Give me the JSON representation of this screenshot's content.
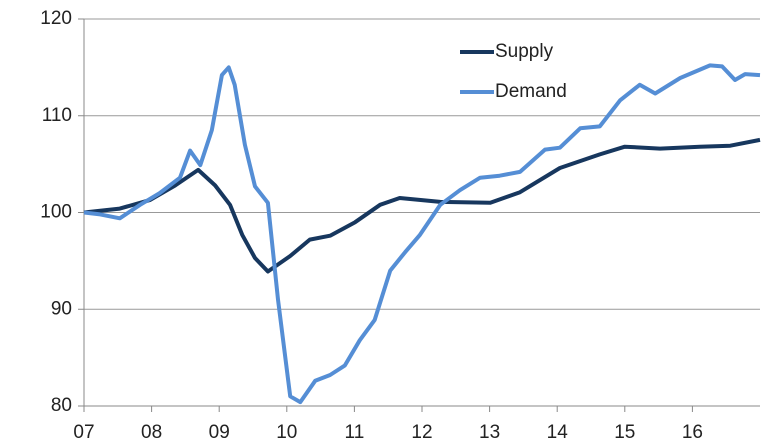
{
  "chart_data": {
    "type": "line",
    "series": [
      {
        "name": "Supply",
        "color": "#17375e",
        "x": [
          2007.0,
          2007.53,
          2007.98,
          2008.35,
          2008.69,
          2008.94,
          2009.16,
          2009.34,
          2009.53,
          2009.72,
          2010.05,
          2010.34,
          2010.64,
          2011.01,
          2011.38,
          2011.67,
          2012.27,
          2013.01,
          2013.45,
          2014.04,
          2014.63,
          2015.0,
          2015.52,
          2016.11,
          2016.56,
          2017.0
        ],
        "values": [
          100,
          100.4,
          101.3,
          102.8,
          104.4,
          102.8,
          100.8,
          97.7,
          95.3,
          93.9,
          95.5,
          97.2,
          97.6,
          99,
          100.8,
          101.5,
          101.1,
          101,
          102.1,
          104.6,
          106,
          106.8,
          106.6,
          106.8,
          106.9,
          107.5
        ]
      },
      {
        "name": "Demand",
        "color": "#558ed5",
        "x": [
          2007.0,
          2007.24,
          2007.53,
          2007.83,
          2008.12,
          2008.42,
          2008.57,
          2008.72,
          2008.89,
          2009.04,
          2009.14,
          2009.23,
          2009.38,
          2009.53,
          2009.72,
          2009.87,
          2010.05,
          2010.2,
          2010.42,
          2010.64,
          2010.86,
          2011.08,
          2011.3,
          2011.53,
          2011.75,
          2011.97,
          2012.27,
          2012.56,
          2012.86,
          2013.15,
          2013.45,
          2013.82,
          2014.04,
          2014.34,
          2014.63,
          2014.93,
          2015.22,
          2015.45,
          2015.82,
          2016.26,
          2016.44,
          2016.63,
          2016.78,
          2017.0
        ],
        "values": [
          100,
          99.8,
          99.4,
          100.8,
          102,
          103.6,
          106.4,
          104.9,
          108.5,
          114.2,
          115,
          113.2,
          107,
          102.7,
          101,
          91,
          81,
          80.4,
          82.6,
          83.2,
          84.2,
          86.8,
          88.9,
          94,
          95.9,
          97.7,
          100.8,
          102.3,
          103.6,
          103.8,
          104.2,
          106.5,
          106.7,
          108.7,
          108.9,
          111.6,
          113.2,
          112.3,
          113.9,
          115.2,
          115.1,
          113.7,
          114.3,
          114.2
        ]
      }
    ],
    "xlim": [
      2007,
      2017
    ],
    "xticks": [
      {
        "value": 2007,
        "label": "07"
      },
      {
        "value": 2008,
        "label": "08"
      },
      {
        "value": 2009,
        "label": "09"
      },
      {
        "value": 2010,
        "label": "10"
      },
      {
        "value": 2011,
        "label": "11"
      },
      {
        "value": 2012,
        "label": "12"
      },
      {
        "value": 2013,
        "label": "13"
      },
      {
        "value": 2014,
        "label": "14"
      },
      {
        "value": 2015,
        "label": "15"
      },
      {
        "value": 2016,
        "label": "16"
      }
    ],
    "ylim": [
      80,
      120
    ],
    "yticks": [
      80,
      90,
      100,
      110,
      120
    ],
    "grid": true
  }
}
